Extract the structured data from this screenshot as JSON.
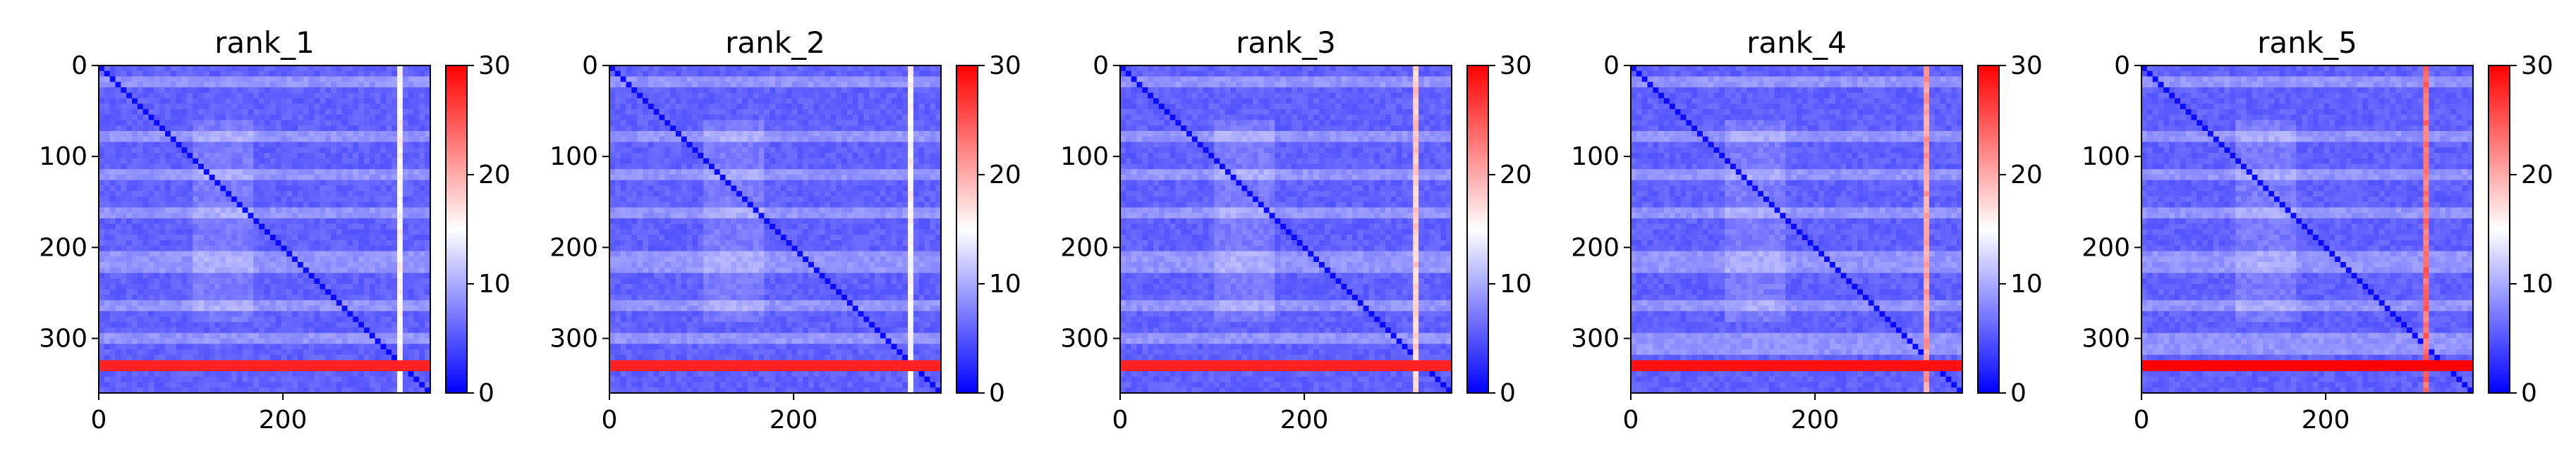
{
  "chart_data": [
    {
      "type": "heatmap",
      "title": "rank_1",
      "xticks": [
        0,
        200
      ],
      "yticks": [
        0,
        100,
        200,
        300
      ],
      "xlim": [
        0,
        360
      ],
      "ylim": [
        360,
        0
      ],
      "colorbar": {
        "min": 0,
        "max": 30,
        "ticks": [
          0,
          10,
          20,
          30
        ],
        "colormap": "bwr"
      },
      "features": {
        "diagonal_band": true,
        "high_row_y": 330,
        "high_row_value": 28,
        "bright_col_x": 325,
        "bright_col_strength": 0.55,
        "row_stripe_y": [
          18,
          80,
          120,
          160,
          212,
          222,
          262,
          302
        ],
        "block_region": [
          100,
          170,
          60,
          280
        ]
      }
    },
    {
      "type": "heatmap",
      "title": "rank_2",
      "xticks": [
        0,
        200
      ],
      "yticks": [
        0,
        100,
        200,
        300
      ],
      "xlim": [
        0,
        360
      ],
      "ylim": [
        360,
        0
      ],
      "colorbar": {
        "min": 0,
        "max": 30,
        "ticks": [
          0,
          10,
          20,
          30
        ],
        "colormap": "bwr"
      },
      "features": {
        "diagonal_band": true,
        "high_row_y": 330,
        "high_row_value": 28,
        "bright_col_x": 325,
        "bright_col_strength": 0.55,
        "row_stripe_y": [
          18,
          80,
          120,
          160,
          212,
          222,
          262,
          302
        ],
        "block_region": [
          100,
          170,
          60,
          280
        ]
      }
    },
    {
      "type": "heatmap",
      "title": "rank_3",
      "xticks": [
        0,
        200
      ],
      "yticks": [
        0,
        100,
        200,
        300
      ],
      "xlim": [
        0,
        360
      ],
      "ylim": [
        360,
        0
      ],
      "colorbar": {
        "min": 0,
        "max": 30,
        "ticks": [
          0,
          10,
          20,
          30
        ],
        "colormap": "bwr"
      },
      "features": {
        "diagonal_band": true,
        "high_row_y": 330,
        "high_row_value": 28,
        "bright_col_x": 322,
        "bright_col_strength": 0.65,
        "row_stripe_y": [
          18,
          80,
          120,
          160,
          212,
          222,
          262,
          302
        ],
        "block_region": [
          100,
          170,
          60,
          280
        ]
      }
    },
    {
      "type": "heatmap",
      "title": "rank_4",
      "xticks": [
        0,
        200
      ],
      "yticks": [
        0,
        100,
        200,
        300
      ],
      "xlim": [
        0,
        360
      ],
      "ylim": [
        360,
        0
      ],
      "colorbar": {
        "min": 0,
        "max": 30,
        "ticks": [
          0,
          10,
          20,
          30
        ],
        "colormap": "bwr"
      },
      "features": {
        "diagonal_band": true,
        "high_row_y": 330,
        "high_row_value": 29,
        "bright_col_x": 320,
        "bright_col_strength": 0.75,
        "row_stripe_y": [
          18,
          80,
          120,
          160,
          212,
          222,
          262,
          302,
          312
        ],
        "block_region": [
          100,
          170,
          60,
          280
        ]
      }
    },
    {
      "type": "heatmap",
      "title": "rank_5",
      "xticks": [
        0,
        200
      ],
      "yticks": [
        0,
        100,
        200,
        300
      ],
      "xlim": [
        0,
        360
      ],
      "ylim": [
        360,
        0
      ],
      "colorbar": {
        "min": 0,
        "max": 30,
        "ticks": [
          0,
          10,
          20,
          30
        ],
        "colormap": "bwr"
      },
      "features": {
        "diagonal_band": true,
        "high_row_y": 330,
        "high_row_value": 30,
        "bright_col_x": 310,
        "bright_col_strength": 0.85,
        "row_stripe_y": [
          18,
          80,
          120,
          160,
          212,
          222,
          262,
          302,
          312
        ],
        "block_region": [
          100,
          170,
          60,
          280
        ]
      }
    }
  ]
}
